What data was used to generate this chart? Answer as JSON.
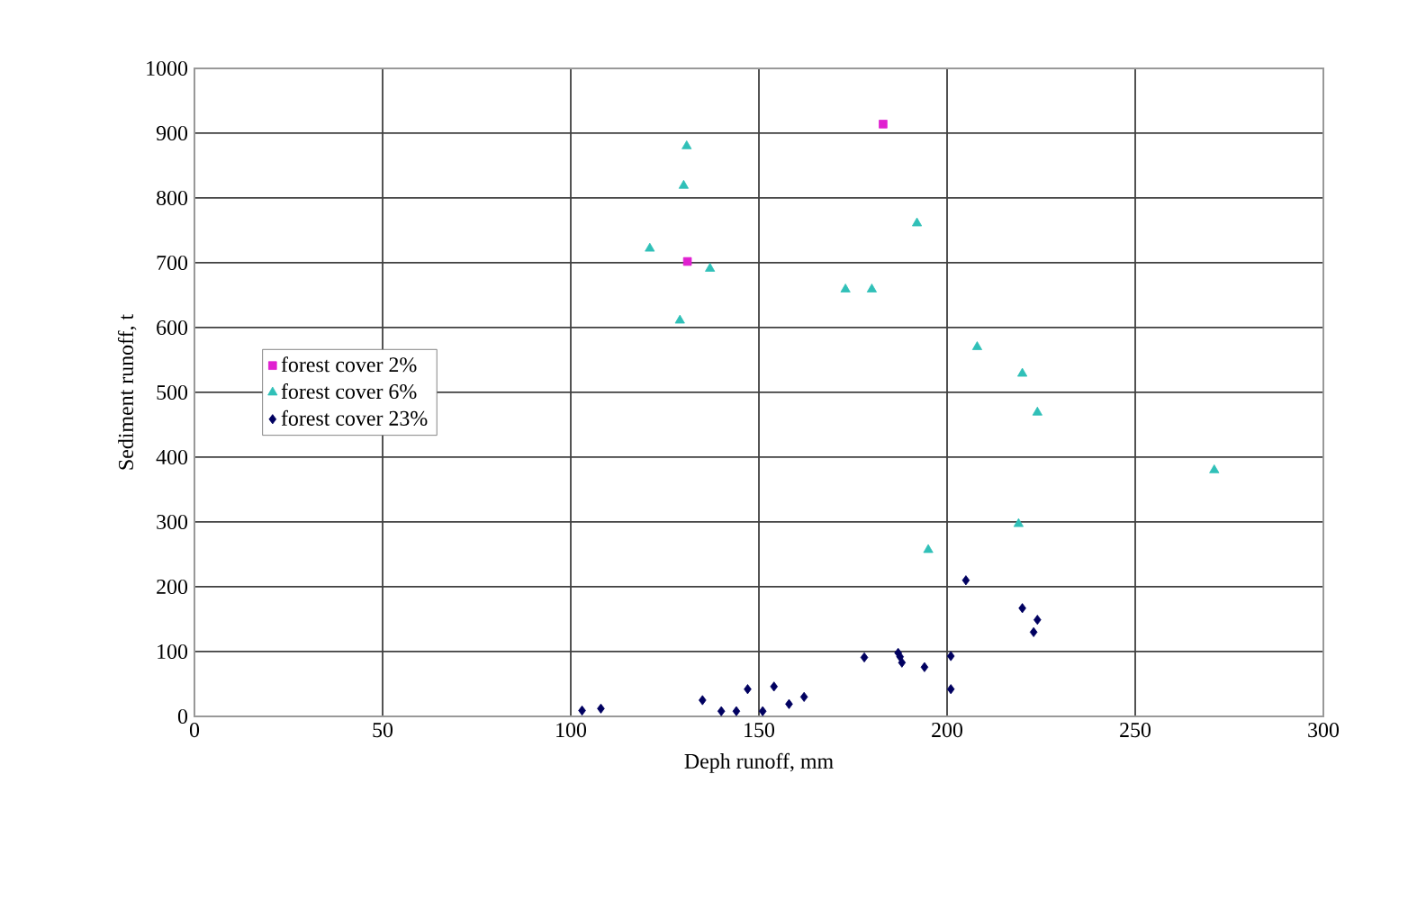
{
  "chart_data": {
    "type": "scatter",
    "xlabel": "Deph runoff, mm",
    "ylabel": "Sediment runoff, t",
    "xlim": [
      0,
      300
    ],
    "xticks": [
      0,
      50,
      100,
      150,
      200,
      250,
      300
    ],
    "ylim": [
      0,
      1000
    ],
    "yticks": [
      0,
      100,
      200,
      300,
      400,
      500,
      600,
      700,
      800,
      900,
      1000
    ],
    "grid": true,
    "legend": "left",
    "series": [
      {
        "name": "forest cover 2%",
        "color": "#e020d0",
        "marker": "square",
        "x": [
          183,
          131
        ],
        "values": [
          914,
          702
        ]
      },
      {
        "name": "forest cover 6%",
        "color": "#30c0b8",
        "marker": "triangle",
        "x": [
          130.8,
          130,
          121,
          137,
          129,
          173,
          180,
          192,
          208,
          220,
          224,
          271,
          219,
          195
        ],
        "values": [
          880,
          819,
          722,
          691,
          611,
          659,
          659,
          761,
          570,
          529,
          469,
          380,
          297,
          257
        ]
      },
      {
        "name": "forest cover 23%",
        "color": "#000060",
        "marker": "diamond",
        "x": [
          205,
          220,
          224,
          223,
          178,
          187,
          187.5,
          188,
          194,
          201,
          201,
          135,
          140,
          144,
          151,
          147,
          154,
          158,
          162,
          103,
          108
        ],
        "values": [
          210,
          167,
          149,
          130,
          91,
          98,
          92,
          83,
          76,
          93,
          42,
          25,
          8,
          8,
          8,
          42,
          46,
          19,
          30,
          9,
          12
        ]
      }
    ]
  }
}
